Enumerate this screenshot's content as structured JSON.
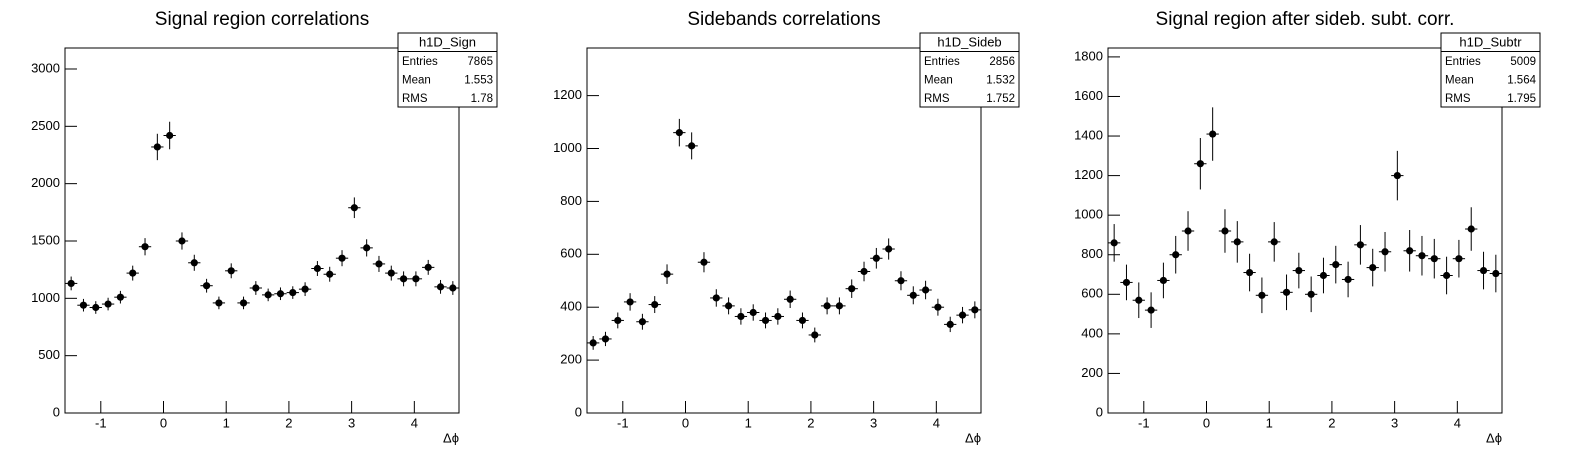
{
  "chart_data": [
    {
      "type": "scatter",
      "title": "Signal region correlations",
      "x_label": "Δϕ",
      "x": [
        -1.4726,
        -1.2763,
        -1.0799,
        -0.8836,
        -0.6872,
        -0.4909,
        -0.2945,
        -0.0982,
        0.0982,
        0.2945,
        0.4909,
        0.6872,
        0.8836,
        1.0799,
        1.2763,
        1.4726,
        1.669,
        1.8653,
        2.0617,
        2.258,
        2.4544,
        2.6507,
        2.8471,
        3.0434,
        3.2398,
        3.4361,
        3.6325,
        3.8288,
        4.0252,
        4.2215,
        4.4179,
        4.6142
      ],
      "series": [
        {
          "color": "#000000",
          "values": [
            1130,
            940,
            920,
            950,
            1010,
            1220,
            1450,
            2320,
            2420,
            1500,
            1310,
            1110,
            960,
            1240,
            960,
            1090,
            1030,
            1040,
            1050,
            1080,
            1260,
            1210,
            1350,
            1790,
            1440,
            1300,
            1220,
            1170,
            1170,
            1270,
            1100,
            1090
          ],
          "errors": [
            60,
            55,
            55,
            55,
            55,
            65,
            75,
            115,
            120,
            75,
            70,
            60,
            55,
            65,
            55,
            60,
            55,
            55,
            55,
            60,
            65,
            65,
            70,
            90,
            75,
            70,
            65,
            65,
            65,
            65,
            60,
            60
          ]
        }
      ],
      "xlim": [
        -1.5708,
        4.7124
      ],
      "xticks": [
        -1,
        0,
        1,
        2,
        3,
        4
      ],
      "ylim": [
        0,
        3183
      ],
      "yticks": [
        0,
        500,
        1000,
        1500,
        2000,
        2500,
        3000
      ],
      "stats": {
        "name": "h1D_Sign",
        "rows": [
          {
            "label": "Entries",
            "value": 7865
          },
          {
            "label": "Mean",
            "value": 1.553
          },
          {
            "label": "RMS",
            "value": 1.78
          }
        ]
      }
    },
    {
      "type": "scatter",
      "title": "Sidebands correlations",
      "x_label": "Δϕ",
      "x": [
        -1.4726,
        -1.2763,
        -1.0799,
        -0.8836,
        -0.6872,
        -0.4909,
        -0.2945,
        -0.0982,
        0.0982,
        0.2945,
        0.4909,
        0.6872,
        0.8836,
        1.0799,
        1.2763,
        1.4726,
        1.669,
        1.8653,
        2.0617,
        2.258,
        2.4544,
        2.6507,
        2.8471,
        3.0434,
        3.2398,
        3.4361,
        3.6325,
        3.8288,
        4.0252,
        4.2215,
        4.4179,
        4.6142
      ],
      "series": [
        {
          "color": "#000000",
          "values": [
            265,
            280,
            350,
            420,
            345,
            410,
            525,
            1060,
            1010,
            570,
            435,
            405,
            365,
            380,
            350,
            365,
            430,
            350,
            295,
            405,
            405,
            470,
            535,
            585,
            620,
            500,
            445,
            465,
            400,
            335,
            370,
            390
          ],
          "errors": [
            26,
            27,
            30,
            33,
            30,
            32,
            37,
            52,
            51,
            38,
            33,
            32,
            31,
            31,
            30,
            31,
            33,
            30,
            28,
            32,
            32,
            35,
            37,
            39,
            40,
            36,
            34,
            35,
            32,
            29,
            31,
            32
          ]
        }
      ],
      "xlim": [
        -1.5708,
        4.7124
      ],
      "xticks": [
        -1,
        0,
        1,
        2,
        3,
        4
      ],
      "ylim": [
        0,
        1380
      ],
      "yticks": [
        0,
        200,
        400,
        600,
        800,
        1000,
        1200
      ],
      "stats": {
        "name": "h1D_Sideb",
        "rows": [
          {
            "label": "Entries",
            "value": 2856
          },
          {
            "label": "Mean",
            "value": 1.532
          },
          {
            "label": "RMS",
            "value": 1.752
          }
        ]
      }
    },
    {
      "type": "scatter",
      "title": "Signal region after sideb. subt. corr.",
      "x_label": "Δϕ",
      "x": [
        -1.4726,
        -1.2763,
        -1.0799,
        -0.8836,
        -0.6872,
        -0.4909,
        -0.2945,
        -0.0982,
        0.0982,
        0.2945,
        0.4909,
        0.6872,
        0.8836,
        1.0799,
        1.2763,
        1.4726,
        1.669,
        1.8653,
        2.0617,
        2.258,
        2.4544,
        2.6507,
        2.8471,
        3.0434,
        3.2398,
        3.4361,
        3.6325,
        3.8288,
        4.0252,
        4.2215,
        4.4179,
        4.6142
      ],
      "series": [
        {
          "color": "#000000",
          "values": [
            860,
            660,
            570,
            520,
            670,
            800,
            920,
            1260,
            1410,
            920,
            865,
            710,
            595,
            865,
            610,
            720,
            600,
            695,
            750,
            675,
            850,
            735,
            815,
            1200,
            820,
            795,
            780,
            695,
            780,
            930,
            720,
            705
          ],
          "errors": [
            95,
            90,
            90,
            90,
            90,
            95,
            100,
            130,
            135,
            110,
            105,
            95,
            90,
            100,
            90,
            90,
            90,
            90,
            95,
            90,
            100,
            95,
            100,
            125,
            105,
            100,
            100,
            95,
            95,
            110,
            95,
            95
          ]
        }
      ],
      "xlim": [
        -1.5708,
        4.7124
      ],
      "xticks": [
        -1,
        0,
        1,
        2,
        3,
        4
      ],
      "ylim": [
        0,
        1845
      ],
      "yticks": [
        0,
        200,
        400,
        600,
        800,
        1000,
        1200,
        1400,
        1600,
        1800
      ],
      "stats": {
        "name": "h1D_Subtr",
        "rows": [
          {
            "label": "Entries",
            "value": 5009
          },
          {
            "label": "Mean",
            "value": 1.564
          },
          {
            "label": "RMS",
            "value": 1.795
          }
        ]
      }
    }
  ]
}
